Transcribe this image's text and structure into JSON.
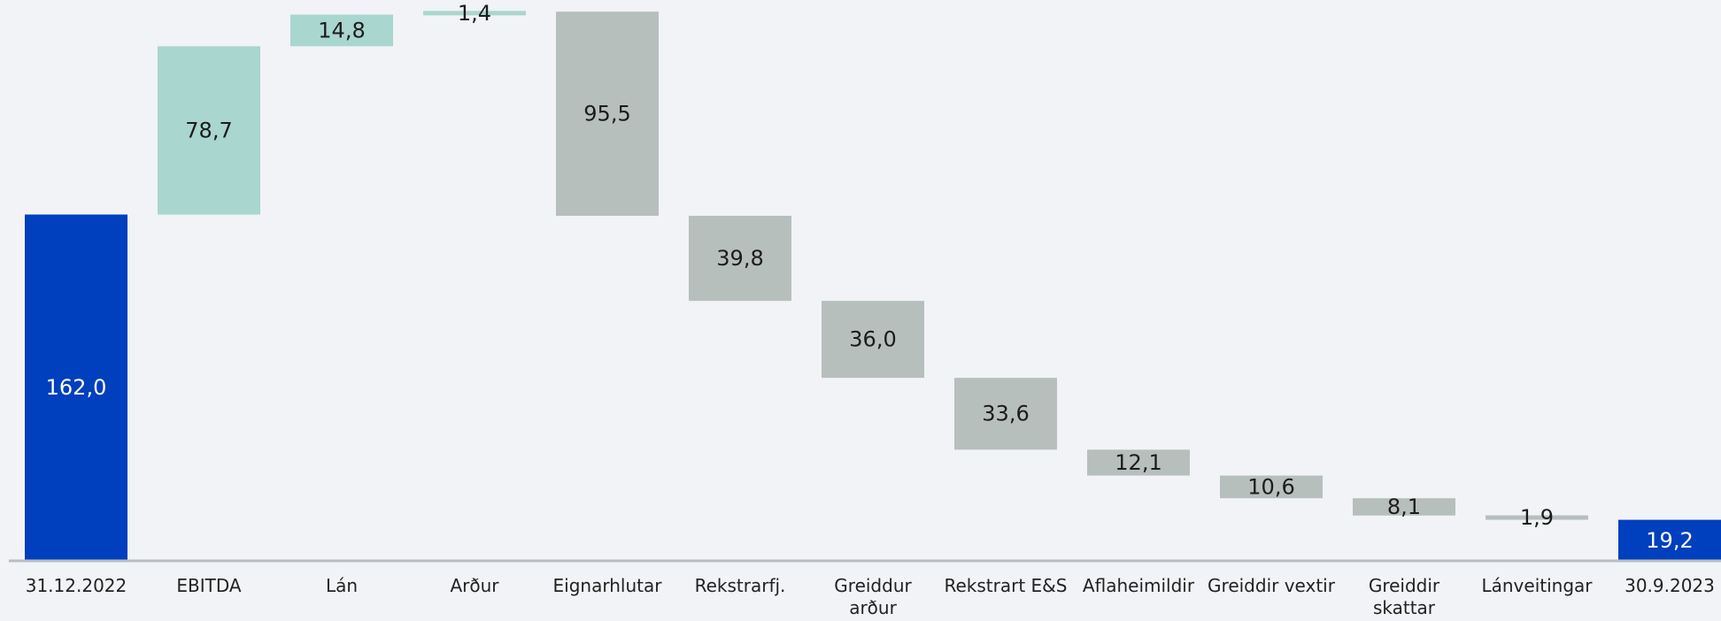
{
  "chart_data": {
    "type": "waterfall",
    "title": "",
    "xlabel": "",
    "ylabel": "",
    "ylim": [
      0,
      250
    ],
    "grid": false,
    "legend": "none",
    "categories": [
      [
        "31.12.2022"
      ],
      [
        "EBITDA"
      ],
      [
        "Lán"
      ],
      [
        "Arður"
      ],
      [
        "Eignarhlutar"
      ],
      [
        "Rekstrarfj."
      ],
      [
        "Greiddur",
        "arður"
      ],
      [
        "Rekstrart E&S"
      ],
      [
        "Aflaheimildir"
      ],
      [
        "Greiddir vextir"
      ],
      [
        "Greiddir",
        "skattar"
      ],
      [
        "Lánveitingar"
      ],
      [
        "30.9.2023"
      ]
    ],
    "steps": [
      {
        "kind": "total",
        "value": 162.0,
        "label": "162,0"
      },
      {
        "kind": "increase",
        "value": 78.7,
        "label": "78,7"
      },
      {
        "kind": "increase",
        "value": 14.8,
        "label": "14,8"
      },
      {
        "kind": "increase",
        "value": 1.4,
        "label": "1,4"
      },
      {
        "kind": "decrease",
        "value": 95.5,
        "label": "95,5"
      },
      {
        "kind": "decrease",
        "value": 39.8,
        "label": "39,8"
      },
      {
        "kind": "decrease",
        "value": 36.0,
        "label": "36,0"
      },
      {
        "kind": "decrease",
        "value": 33.6,
        "label": "33,6"
      },
      {
        "kind": "decrease",
        "value": 12.1,
        "label": "12,1"
      },
      {
        "kind": "decrease",
        "value": 10.6,
        "label": "10,6"
      },
      {
        "kind": "decrease",
        "value": 8.1,
        "label": "8,1"
      },
      {
        "kind": "decrease",
        "value": 1.9,
        "label": "1,9"
      },
      {
        "kind": "total",
        "value": 19.2,
        "label": "19,2"
      }
    ],
    "colors": {
      "total": "#003fbd",
      "increase": "#a9d6ce",
      "decrease": "#b7bfbd",
      "axis": "#b8bec2",
      "label_dark": "#1c1c1c",
      "label_light": "#ffffff"
    }
  }
}
